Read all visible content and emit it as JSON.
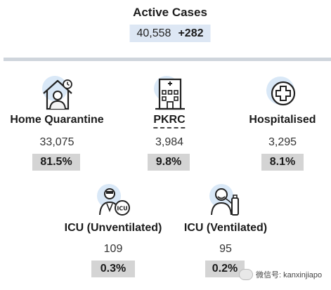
{
  "header": {
    "title": "Active Cases",
    "total": "40,558",
    "delta": "+282"
  },
  "categories": [
    {
      "label": "Home Quarantine",
      "count": "33,075",
      "pct": "81.5%",
      "icon": "house-person-icon"
    },
    {
      "label": "PKRC",
      "count": "3,984",
      "pct": "9.8%",
      "icon": "building-hospital-icon"
    },
    {
      "label": "Hospitalised",
      "count": "3,295",
      "pct": "8.1%",
      "icon": "medical-cross-icon"
    },
    {
      "label": "ICU (Unventilated)",
      "count": "109",
      "pct": "0.3%",
      "icon": "doctor-icu-icon"
    },
    {
      "label": "ICU (Ventilated)",
      "count": "95",
      "pct": "0.2%",
      "icon": "patient-ventilator-icon"
    }
  ],
  "watermark": {
    "text": "微信号: kanxinjiapo"
  },
  "colors": {
    "highlight": "#dde7f4",
    "pct_bg": "#d4d4d4",
    "divider": "#cfd5dc",
    "icon_bg": "#d9e8f7"
  }
}
